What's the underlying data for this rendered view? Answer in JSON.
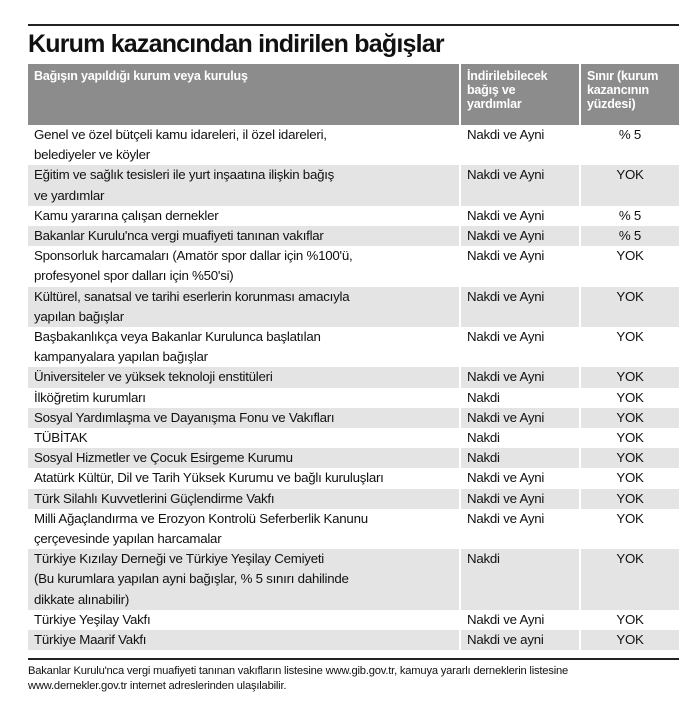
{
  "title": "Kurum kazancından indirilen bağışlar",
  "table": {
    "header": [
      "Bağışın yapıldığı kurum veya kuruluş",
      "İndirilebilecek\nbağış ve\nyardımlar",
      "Sınır (kurum\nkazancının\nyüzdesi)"
    ],
    "rows": [
      [
        "Genel ve özel bütçeli kamu idareleri, il özel idareleri,\nbelediyeler ve köyler",
        "Nakdi ve Ayni",
        "% 5"
      ],
      [
        "Eğitim ve sağlık tesisleri ile yurt inşaatına ilişkin bağış\nve yardımlar",
        "Nakdi ve Ayni",
        "YOK"
      ],
      [
        "Kamu yararına çalışan dernekler",
        "Nakdi ve Ayni",
        "% 5"
      ],
      [
        "Bakanlar Kurulu'nca vergi muafiyeti tanınan vakıflar",
        "Nakdi ve Ayni",
        "% 5"
      ],
      [
        "Sponsorluk harcamaları (Amatör spor dallar için %100'ü,\nprofesyonel spor dalları için %50'si)",
        "Nakdi ve Ayni",
        "YOK"
      ],
      [
        "Kültürel, sanatsal ve tarihi eserlerin korunması amacıyla\nyapılan bağışlar",
        "Nakdi ve Ayni",
        "YOK"
      ],
      [
        "Başbakanlıkça veya Bakanlar Kurulunca başlatılan\nkampanyalara yapılan bağışlar",
        "Nakdi ve Ayni",
        "YOK"
      ],
      [
        "Üniversiteler ve yüksek teknoloji enstitüleri",
        "Nakdi ve Ayni",
        "YOK"
      ],
      [
        "İlköğretim kurumları",
        "Nakdi",
        "YOK"
      ],
      [
        "Sosyal Yardımlaşma ve Dayanışma Fonu ve Vakıfları",
        "Nakdi ve Ayni",
        "YOK"
      ],
      [
        "TÜBİTAK",
        "Nakdi",
        "YOK"
      ],
      [
        "Sosyal Hizmetler ve Çocuk Esirgeme Kurumu",
        "Nakdi",
        "YOK"
      ],
      [
        "Atatürk Kültür, Dil ve Tarih Yüksek Kurumu ve bağlı kuruluşları",
        "Nakdi ve Ayni",
        "YOK"
      ],
      [
        "Türk Silahlı Kuvvetlerini Güçlendirme Vakfı",
        "Nakdi ve Ayni",
        "YOK"
      ],
      [
        "Milli Ağaçlandırma ve Erozyon Kontrolü Seferberlik Kanunu\nçerçevesinde yapılan harcamalar",
        "Nakdi ve Ayni",
        "YOK"
      ],
      [
        "Türkiye Kızılay Derneği ve Türkiye Yeşilay Cemiyeti\n(Bu kurumlara yapılan ayni bağışlar, % 5 sınırı dahilinde\ndikkate alınabilir)",
        "Nakdi",
        "YOK"
      ],
      [
        "Türkiye Yeşilay Vakfı",
        "Nakdi ve Ayni",
        "YOK"
      ],
      [
        "Türkiye Maarif Vakfı",
        "Nakdi ve ayni",
        "YOK"
      ]
    ]
  },
  "footnote": "Bakanlar Kurulu'nca vergi muafiyeti tanınan vakıfların listesine www.gib.gov.tr, kamuya yararlı derneklerin listesine\nwww.dernekler.gov.tr internet adreslerinden ulaşılabilir."
}
